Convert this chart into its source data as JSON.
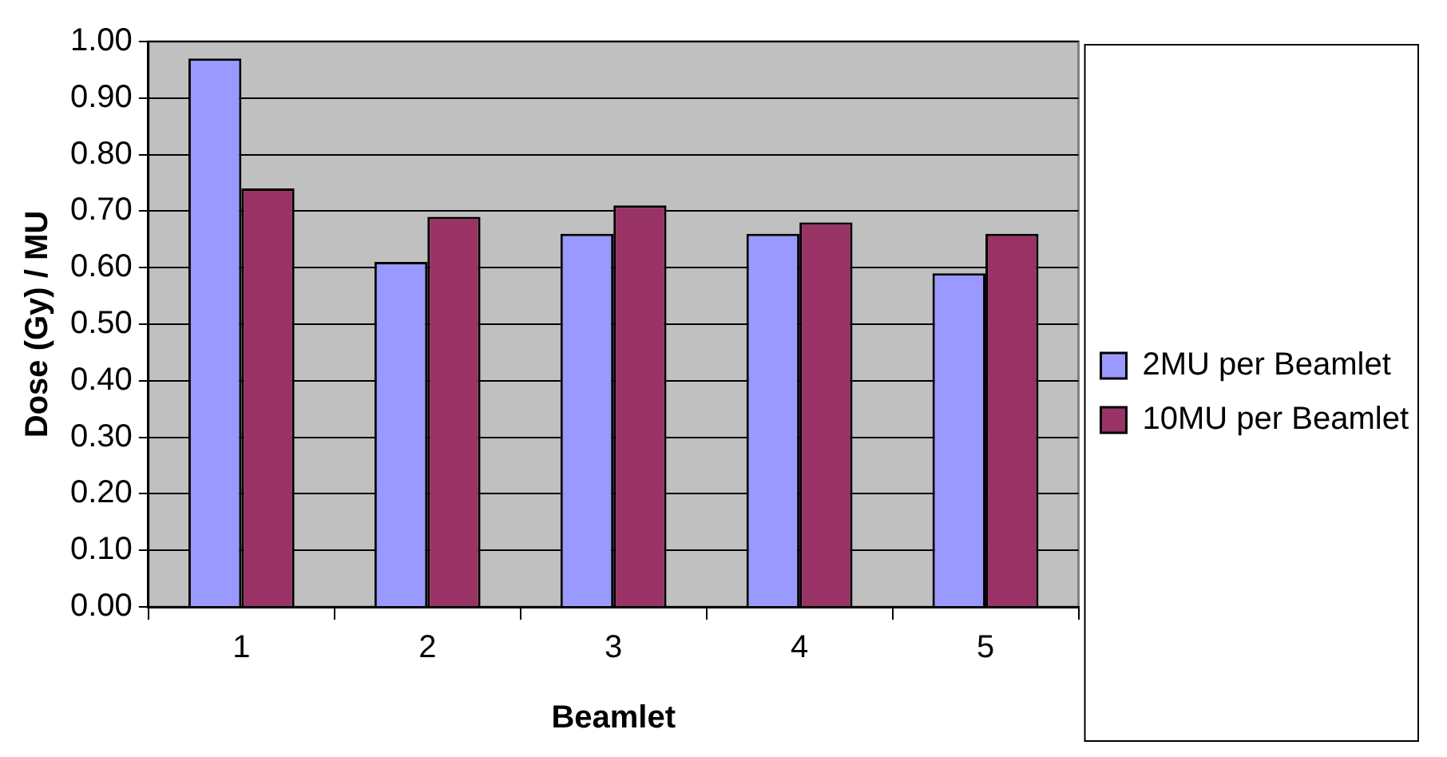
{
  "chart_data": {
    "type": "bar",
    "xlabel": "Beamlet",
    "ylabel": "Dose (Gy) / MU",
    "categories": [
      "1",
      "2",
      "3",
      "4",
      "5"
    ],
    "series": [
      {
        "name": "2MU per Beamlet",
        "color": "#9999ff",
        "values": [
          0.97,
          0.61,
          0.66,
          0.66,
          0.59
        ]
      },
      {
        "name": "10MU per Beamlet",
        "color": "#993366",
        "values": [
          0.74,
          0.69,
          0.71,
          0.68,
          0.66
        ]
      }
    ],
    "ylim": [
      0,
      1
    ],
    "yticks": [
      {
        "value": 0,
        "label": "0.00"
      },
      {
        "value": 0.1,
        "label": "0.10"
      },
      {
        "value": 0.2,
        "label": "0.20"
      },
      {
        "value": 0.3,
        "label": "0.30"
      },
      {
        "value": 0.4,
        "label": "0.40"
      },
      {
        "value": 0.5,
        "label": "0.50"
      },
      {
        "value": 0.6,
        "label": "0.60"
      },
      {
        "value": 0.7,
        "label": "0.70"
      },
      {
        "value": 0.8,
        "label": "0.80"
      },
      {
        "value": 0.9,
        "label": "0.90"
      },
      {
        "value": 1,
        "label": "1.00"
      }
    ],
    "grid": "y",
    "legend": "right"
  }
}
